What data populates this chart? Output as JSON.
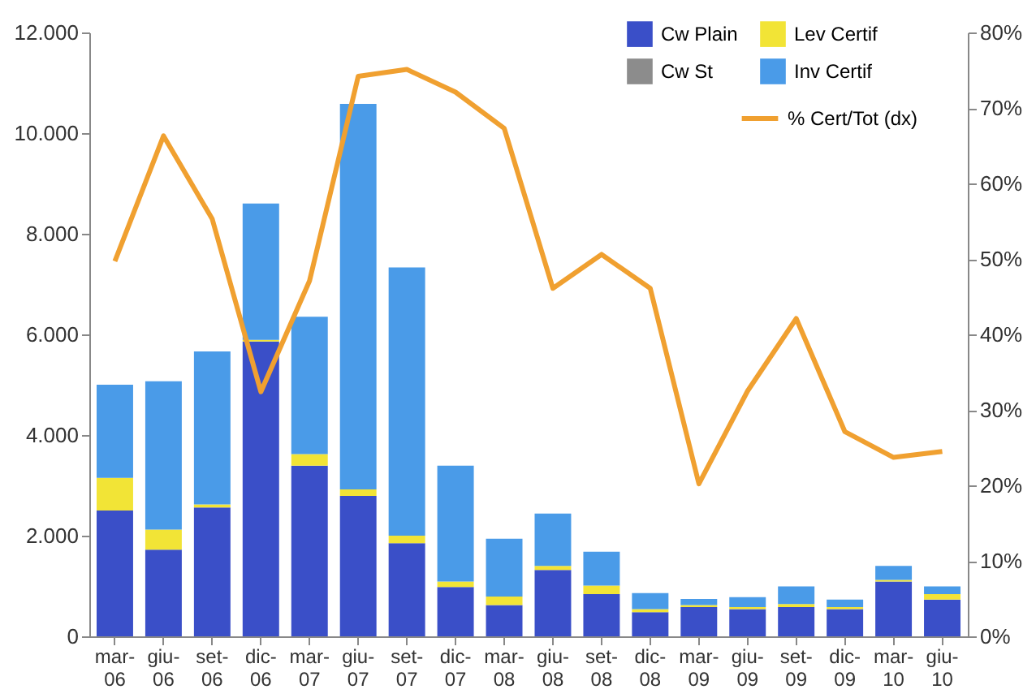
{
  "chart_data": {
    "type": "bar",
    "stacked": true,
    "categories": [
      "mar-06",
      "giu-06",
      "set-06",
      "dic-06",
      "mar-07",
      "giu-07",
      "set-07",
      "dic-07",
      "mar-08",
      "giu-08",
      "set-08",
      "dic-08",
      "mar-09",
      "giu-09",
      "set-09",
      "dic-09",
      "mar-10",
      "giu-10"
    ],
    "series": [
      {
        "name": "Cw Plain",
        "color": "#3a4fc8",
        "values": [
          2500,
          1720,
          2560,
          5860,
          3390,
          2790,
          1850,
          980,
          620,
          1320,
          840,
          480,
          580,
          540,
          580,
          540,
          1090,
          730
        ]
      },
      {
        "name": "Cw St",
        "color": "#8c8c8c",
        "values": [
          0,
          0,
          0,
          0,
          0,
          0,
          0,
          0,
          0,
          0,
          0,
          0,
          0,
          0,
          0,
          0,
          0,
          0
        ]
      },
      {
        "name": "Lev Certif",
        "color": "#f2e436",
        "values": [
          650,
          400,
          60,
          30,
          230,
          130,
          150,
          110,
          170,
          80,
          170,
          60,
          40,
          40,
          60,
          40,
          30,
          110
        ]
      },
      {
        "name": "Inv Certif",
        "color": "#4a9be8",
        "values": [
          1850,
          2950,
          3040,
          2710,
          2730,
          7660,
          5330,
          2300,
          1150,
          1040,
          670,
          320,
          120,
          200,
          350,
          150,
          280,
          150
        ]
      },
      {
        "name": "% Cert/Tot (dx)",
        "type": "line",
        "axis": "y2",
        "color": "#f0a030",
        "values": [
          49.7,
          66.3,
          55.3,
          32.4,
          47.1,
          74.2,
          75.1,
          72.1,
          67.3,
          46.1,
          50.6,
          46.1,
          20.2,
          32.5,
          42.1,
          27.1,
          23.7,
          24.5
        ]
      }
    ],
    "ylim": [
      0,
      12000
    ],
    "yticks": [
      {
        "value": 0,
        "label": "0"
      },
      {
        "value": 2000,
        "label": "2.000"
      },
      {
        "value": 4000,
        "label": "4.000"
      },
      {
        "value": 6000,
        "label": "6.000"
      },
      {
        "value": 8000,
        "label": "8.000"
      },
      {
        "value": 10000,
        "label": "10.000"
      },
      {
        "value": 12000,
        "label": "12.000"
      }
    ],
    "y2lim": [
      0,
      80
    ],
    "y2ticks": [
      {
        "value": 0,
        "label": "0%"
      },
      {
        "value": 10,
        "label": "10%"
      },
      {
        "value": 20,
        "label": "20%"
      },
      {
        "value": 30,
        "label": "30%"
      },
      {
        "value": 40,
        "label": "40%"
      },
      {
        "value": 50,
        "label": "50%"
      },
      {
        "value": 60,
        "label": "60%"
      },
      {
        "value": 70,
        "label": "70%"
      },
      {
        "value": 80,
        "label": "80%"
      }
    ],
    "legend": "top right",
    "grid": false,
    "marker": "none",
    "line_style": "solid"
  }
}
